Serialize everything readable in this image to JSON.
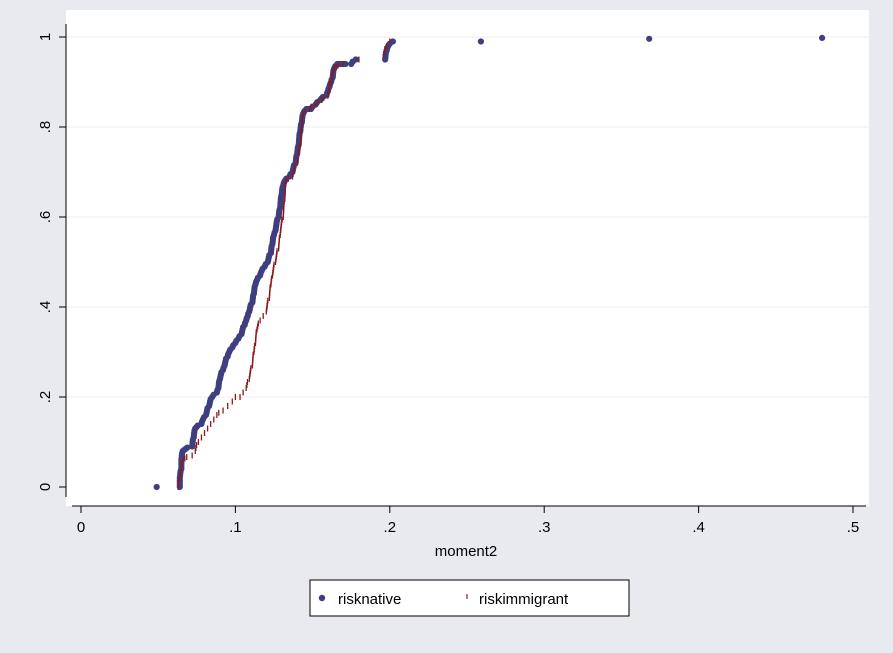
{
  "chart_data": {
    "type": "scatter",
    "title": "",
    "xlabel": "moment2",
    "ylabel": "",
    "xlim": [
      0,
      0.5
    ],
    "ylim": [
      0,
      1
    ],
    "xticks": [
      {
        "value": 0,
        "label": "0"
      },
      {
        "value": 0.1,
        "label": ".1"
      },
      {
        "value": 0.2,
        "label": ".2"
      },
      {
        "value": 0.3,
        "label": ".3"
      },
      {
        "value": 0.4,
        "label": ".4"
      },
      {
        "value": 0.5,
        "label": ".5"
      }
    ],
    "yticks": [
      {
        "value": 0,
        "label": "0"
      },
      {
        "value": 0.2,
        "label": ".2"
      },
      {
        "value": 0.4,
        "label": ".4"
      },
      {
        "value": 0.6,
        "label": ".6"
      },
      {
        "value": 0.8,
        "label": ".8"
      },
      {
        "value": 1,
        "label": "1"
      }
    ],
    "grid": "horizontal",
    "legend_position": "bottom",
    "series": [
      {
        "name": "risknative",
        "marker": "dot",
        "color": "#3f3f7f",
        "points": [
          [
            0.049,
            0.0
          ],
          [
            0.064,
            0.0
          ],
          [
            0.064,
            0.02
          ],
          [
            0.065,
            0.04
          ],
          [
            0.065,
            0.06
          ],
          [
            0.066,
            0.08
          ],
          [
            0.072,
            0.09
          ],
          [
            0.073,
            0.11
          ],
          [
            0.074,
            0.13
          ],
          [
            0.078,
            0.14
          ],
          [
            0.079,
            0.15
          ],
          [
            0.081,
            0.16
          ],
          [
            0.083,
            0.18
          ],
          [
            0.085,
            0.2
          ],
          [
            0.088,
            0.21
          ],
          [
            0.089,
            0.22
          ],
          [
            0.09,
            0.24
          ],
          [
            0.092,
            0.26
          ],
          [
            0.093,
            0.27
          ],
          [
            0.095,
            0.29
          ],
          [
            0.096,
            0.3
          ],
          [
            0.098,
            0.31
          ],
          [
            0.1,
            0.32
          ],
          [
            0.102,
            0.33
          ],
          [
            0.104,
            0.34
          ],
          [
            0.106,
            0.36
          ],
          [
            0.107,
            0.37
          ],
          [
            0.108,
            0.38
          ],
          [
            0.109,
            0.39
          ],
          [
            0.111,
            0.41
          ],
          [
            0.112,
            0.43
          ],
          [
            0.113,
            0.45
          ],
          [
            0.114,
            0.46
          ],
          [
            0.116,
            0.47
          ],
          [
            0.117,
            0.48
          ],
          [
            0.119,
            0.49
          ],
          [
            0.121,
            0.5
          ],
          [
            0.123,
            0.52
          ],
          [
            0.124,
            0.54
          ],
          [
            0.125,
            0.56
          ],
          [
            0.126,
            0.57
          ],
          [
            0.128,
            0.6
          ],
          [
            0.129,
            0.62
          ],
          [
            0.13,
            0.65
          ],
          [
            0.131,
            0.67
          ],
          [
            0.132,
            0.68
          ],
          [
            0.135,
            0.69
          ],
          [
            0.137,
            0.7
          ],
          [
            0.139,
            0.72
          ],
          [
            0.14,
            0.74
          ],
          [
            0.141,
            0.76
          ],
          [
            0.142,
            0.79
          ],
          [
            0.143,
            0.81
          ],
          [
            0.144,
            0.83
          ],
          [
            0.146,
            0.84
          ],
          [
            0.149,
            0.84
          ],
          [
            0.152,
            0.85
          ],
          [
            0.155,
            0.86
          ],
          [
            0.159,
            0.87
          ],
          [
            0.16,
            0.88
          ],
          [
            0.161,
            0.89
          ],
          [
            0.162,
            0.9
          ],
          [
            0.163,
            0.91
          ],
          [
            0.164,
            0.93
          ],
          [
            0.166,
            0.94
          ],
          [
            0.175,
            0.94
          ],
          [
            0.178,
            0.95
          ],
          [
            0.197,
            0.95
          ],
          [
            0.198,
            0.97
          ],
          [
            0.199,
            0.98
          ],
          [
            0.202,
            0.99
          ],
          [
            0.259,
            0.99
          ],
          [
            0.368,
            0.996
          ],
          [
            0.48,
            0.998
          ]
        ]
      },
      {
        "name": "riskimmigrant",
        "marker": "tick",
        "color": "#8b1a1a",
        "points": [
          [
            0.063,
            0.0
          ],
          [
            0.064,
            0.02
          ],
          [
            0.065,
            0.04
          ],
          [
            0.066,
            0.06
          ],
          [
            0.072,
            0.07
          ],
          [
            0.074,
            0.08
          ],
          [
            0.076,
            0.1
          ],
          [
            0.078,
            0.11
          ],
          [
            0.08,
            0.12
          ],
          [
            0.082,
            0.13
          ],
          [
            0.084,
            0.14
          ],
          [
            0.086,
            0.15
          ],
          [
            0.088,
            0.16
          ],
          [
            0.092,
            0.17
          ],
          [
            0.095,
            0.18
          ],
          [
            0.098,
            0.19
          ],
          [
            0.1,
            0.2
          ],
          [
            0.103,
            0.2
          ],
          [
            0.105,
            0.21
          ],
          [
            0.107,
            0.22
          ],
          [
            0.109,
            0.24
          ],
          [
            0.111,
            0.27
          ],
          [
            0.112,
            0.3
          ],
          [
            0.113,
            0.32
          ],
          [
            0.114,
            0.35
          ],
          [
            0.116,
            0.37
          ],
          [
            0.118,
            0.38
          ],
          [
            0.12,
            0.39
          ],
          [
            0.122,
            0.42
          ],
          [
            0.123,
            0.45
          ],
          [
            0.124,
            0.47
          ],
          [
            0.126,
            0.5
          ],
          [
            0.128,
            0.53
          ],
          [
            0.129,
            0.56
          ],
          [
            0.131,
            0.6
          ],
          [
            0.132,
            0.64
          ],
          [
            0.133,
            0.68
          ],
          [
            0.137,
            0.69
          ],
          [
            0.14,
            0.72
          ],
          [
            0.142,
            0.76
          ],
          [
            0.143,
            0.8
          ],
          [
            0.144,
            0.83
          ],
          [
            0.148,
            0.84
          ],
          [
            0.152,
            0.85
          ],
          [
            0.156,
            0.86
          ],
          [
            0.16,
            0.87
          ],
          [
            0.162,
            0.9
          ],
          [
            0.164,
            0.93
          ],
          [
            0.17,
            0.94
          ],
          [
            0.18,
            0.95
          ],
          [
            0.196,
            0.96
          ],
          [
            0.198,
            0.98
          ],
          [
            0.2,
            0.99
          ]
        ]
      }
    ]
  }
}
